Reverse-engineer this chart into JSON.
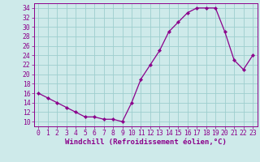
{
  "x": [
    0,
    1,
    2,
    3,
    4,
    5,
    6,
    7,
    8,
    9,
    10,
    11,
    12,
    13,
    14,
    15,
    16,
    17,
    18,
    19,
    20,
    21,
    22,
    23
  ],
  "y": [
    16,
    15,
    14,
    13,
    12,
    11,
    11,
    10.5,
    10.5,
    10,
    14,
    19,
    22,
    25,
    29,
    31,
    33,
    34,
    34,
    34,
    29,
    23,
    21,
    24
  ],
  "line_color": "#8b008b",
  "marker": "D",
  "marker_size": 2.2,
  "bg_color": "#ceeaea",
  "grid_color": "#9ecece",
  "xlabel": "Windchill (Refroidissement éolien,°C)",
  "ylim": [
    9,
    35
  ],
  "xlim": [
    -0.5,
    23.5
  ],
  "yticks": [
    10,
    12,
    14,
    16,
    18,
    20,
    22,
    24,
    26,
    28,
    30,
    32,
    34
  ],
  "xticks": [
    0,
    1,
    2,
    3,
    4,
    5,
    6,
    7,
    8,
    9,
    10,
    11,
    12,
    13,
    14,
    15,
    16,
    17,
    18,
    19,
    20,
    21,
    22,
    23
  ],
  "tick_color": "#8b008b",
  "label_fontsize": 6.5,
  "tick_fontsize": 5.8,
  "spine_color": "#8b008b"
}
